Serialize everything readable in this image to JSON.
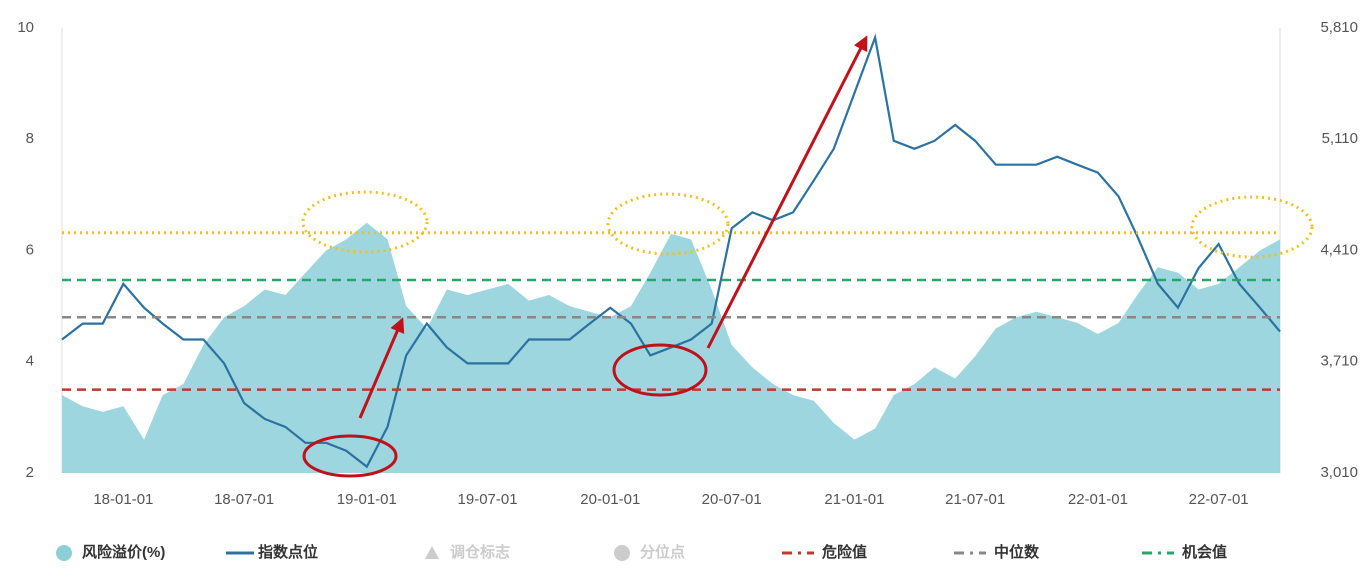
{
  "chart_data": {
    "type": "line",
    "x": [
      "17-10-01",
      "17-11-01",
      "17-12-01",
      "18-01-01",
      "18-02-01",
      "18-03-01",
      "18-04-01",
      "18-05-01",
      "18-06-01",
      "18-07-01",
      "18-08-01",
      "18-09-01",
      "18-10-01",
      "18-11-01",
      "18-12-01",
      "19-01-01",
      "19-02-01",
      "19-03-01",
      "19-04-01",
      "19-05-01",
      "19-06-01",
      "19-07-01",
      "19-08-01",
      "19-09-01",
      "19-10-01",
      "19-11-01",
      "19-12-01",
      "20-01-01",
      "20-02-01",
      "20-03-01",
      "20-04-01",
      "20-05-01",
      "20-06-01",
      "20-07-01",
      "20-08-01",
      "20-09-01",
      "20-10-01",
      "20-11-01",
      "20-12-01",
      "21-01-01",
      "21-02-01",
      "21-03-01",
      "21-04-01",
      "21-05-01",
      "21-06-01",
      "21-07-01",
      "21-08-01",
      "21-09-01",
      "21-10-01",
      "21-11-01",
      "21-12-01",
      "22-01-01",
      "22-02-01",
      "22-03-01",
      "22-04-01",
      "22-05-01",
      "22-06-01",
      "22-07-01",
      "22-08-01",
      "22-09-01",
      "22-10-01"
    ],
    "xlim": [
      "17-10-01",
      "22-10-01"
    ],
    "xticks": [
      "18-01-01",
      "18-07-01",
      "19-01-01",
      "19-07-01",
      "20-01-01",
      "20-07-01",
      "21-01-01",
      "21-07-01",
      "22-01-01",
      "22-07-01"
    ],
    "ylim": [
      2,
      10
    ],
    "yticks": [
      2,
      4,
      6,
      8,
      10
    ],
    "y2lim": [
      3010,
      5810
    ],
    "y2ticks": [
      {
        "value": 3010,
        "label": "3,010"
      },
      {
        "value": 3710,
        "label": "3,710"
      },
      {
        "value": 4410,
        "label": "4,410"
      },
      {
        "value": 5110,
        "label": "5,110"
      },
      {
        "value": 5810,
        "label": "5,810"
      }
    ],
    "series": [
      {
        "name": "风险溢价(%)",
        "type": "area",
        "color": "#8ccfd9",
        "values": [
          3.4,
          3.2,
          3.1,
          3.2,
          2.6,
          3.4,
          3.6,
          4.3,
          4.8,
          5.0,
          5.3,
          5.2,
          5.6,
          6.0,
          6.2,
          6.5,
          6.2,
          5.0,
          4.6,
          5.3,
          5.2,
          5.3,
          5.4,
          5.1,
          5.2,
          5.0,
          4.9,
          4.8,
          5.0,
          5.6,
          6.3,
          6.2,
          5.3,
          4.3,
          3.9,
          3.6,
          3.4,
          3.3,
          2.9,
          2.6,
          2.8,
          3.4,
          3.6,
          3.9,
          3.7,
          4.1,
          4.6,
          4.8,
          4.9,
          4.8,
          4.7,
          4.5,
          4.7,
          5.2,
          5.7,
          5.6,
          5.3,
          5.4,
          5.7,
          6.0,
          6.2
        ]
      },
      {
        "name": "指数点位",
        "type": "line",
        "color": "#2c72a0",
        "axis": "y2",
        "values": [
          3850,
          3950,
          3950,
          4200,
          4050,
          3950,
          3850,
          3850,
          3700,
          3450,
          3350,
          3300,
          3200,
          3200,
          3150,
          3050,
          3300,
          3750,
          3950,
          3800,
          3700,
          3700,
          3700,
          3850,
          3850,
          3850,
          3950,
          4050,
          3950,
          3750,
          3800,
          3850,
          3950,
          4550,
          4650,
          4600,
          4650,
          4850,
          5050,
          5400,
          5750,
          5100,
          5050,
          5100,
          5200,
          5100,
          4950,
          4950,
          4950,
          5000,
          4950,
          4900,
          4750,
          4500,
          4200,
          4050,
          4300,
          4450,
          4200,
          4050,
          3900
        ]
      }
    ],
    "legend_extra": [
      {
        "name": "调仓标志",
        "color": "#cccccc",
        "marker": "triangle"
      },
      {
        "name": "分位点",
        "color": "#cccccc",
        "marker": "circle"
      }
    ],
    "reference_lines": [
      {
        "name": "危险值",
        "value": 3.5,
        "color": "#c0392b"
      },
      {
        "name": "中位数",
        "value": 4.8,
        "color": "#888888"
      },
      {
        "name": "机会值",
        "value": 5.47,
        "color": "#27a56b"
      },
      {
        "value": 6.32,
        "color": "#f0c020",
        "style": "dotted"
      }
    ]
  }
}
